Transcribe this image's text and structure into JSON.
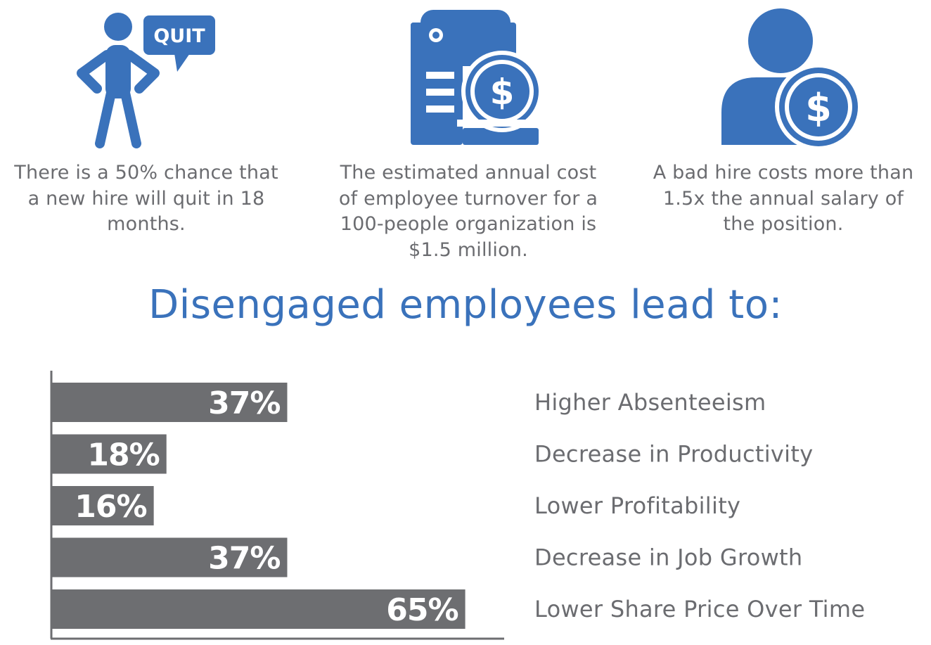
{
  "colors": {
    "accent": "#3a72bb",
    "bar": "#6d6e71",
    "text": "#6b6c70",
    "axis": "#6d6e71"
  },
  "stats": [
    {
      "icon": "person-quit-icon",
      "badge": "QUIT",
      "lines": [
        "There is a 50% chance that",
        "a new hire will quit in 18",
        "months."
      ]
    },
    {
      "icon": "document-dollar-icon",
      "lines": [
        "The estimated annual cost",
        "of employee turnover for a",
        "100-people organization is",
        "$1.5 million."
      ]
    },
    {
      "icon": "user-dollar-icon",
      "lines": [
        "A bad hire costs more than",
        "1.5x the annual salary of",
        "the position."
      ]
    }
  ],
  "headline": "Disengaged employees lead to:",
  "chart_data": {
    "type": "bar",
    "orientation": "horizontal",
    "categories": [
      "Higher Absenteeism",
      "Decrease in Productivity",
      "Lower Profitability",
      "Decrease in Job Growth",
      "Lower Share Price Over Time"
    ],
    "values": [
      37,
      18,
      16,
      37,
      65
    ],
    "value_labels": [
      "37%",
      "18%",
      "16%",
      "37%",
      "65%"
    ],
    "xlim": [
      0,
      100
    ],
    "grid": false,
    "legend": "none"
  }
}
